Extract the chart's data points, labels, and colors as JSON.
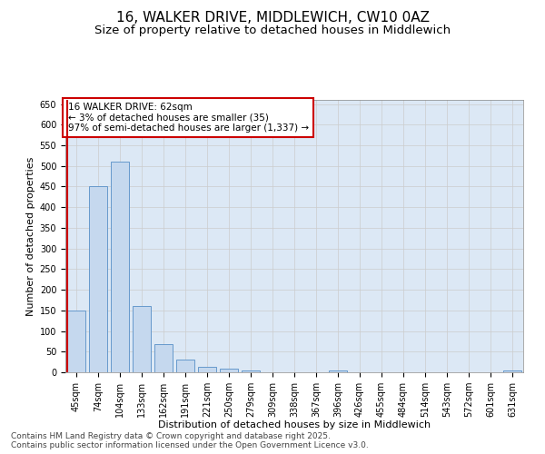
{
  "title_line1": "16, WALKER DRIVE, MIDDLEWICH, CW10 0AZ",
  "title_line2": "Size of property relative to detached houses in Middlewich",
  "xlabel": "Distribution of detached houses by size in Middlewich",
  "ylabel": "Number of detached properties",
  "categories": [
    "45sqm",
    "74sqm",
    "104sqm",
    "133sqm",
    "162sqm",
    "191sqm",
    "221sqm",
    "250sqm",
    "279sqm",
    "309sqm",
    "338sqm",
    "367sqm",
    "396sqm",
    "426sqm",
    "455sqm",
    "484sqm",
    "514sqm",
    "543sqm",
    "572sqm",
    "601sqm",
    "631sqm"
  ],
  "values": [
    150,
    450,
    510,
    160,
    68,
    30,
    13,
    8,
    5,
    0,
    0,
    0,
    5,
    0,
    0,
    0,
    0,
    0,
    0,
    0,
    5
  ],
  "bar_color": "#c5d8ee",
  "bar_edge_color": "#6699cc",
  "highlight_color": "#cc0000",
  "annotation_text": "16 WALKER DRIVE: 62sqm\n← 3% of detached houses are smaller (35)\n97% of semi-detached houses are larger (1,337) →",
  "annotation_box_color": "#ffffff",
  "annotation_box_edge_color": "#cc0000",
  "ylim": [
    0,
    660
  ],
  "yticks": [
    0,
    50,
    100,
    150,
    200,
    250,
    300,
    350,
    400,
    450,
    500,
    550,
    600,
    650
  ],
  "grid_color": "#cccccc",
  "background_color": "#dce8f5",
  "footer_text": "Contains HM Land Registry data © Crown copyright and database right 2025.\nContains public sector information licensed under the Open Government Licence v3.0.",
  "title_fontsize": 11,
  "subtitle_fontsize": 9.5,
  "axis_label_fontsize": 8,
  "tick_fontsize": 7,
  "annotation_fontsize": 7.5,
  "footer_fontsize": 6.5
}
